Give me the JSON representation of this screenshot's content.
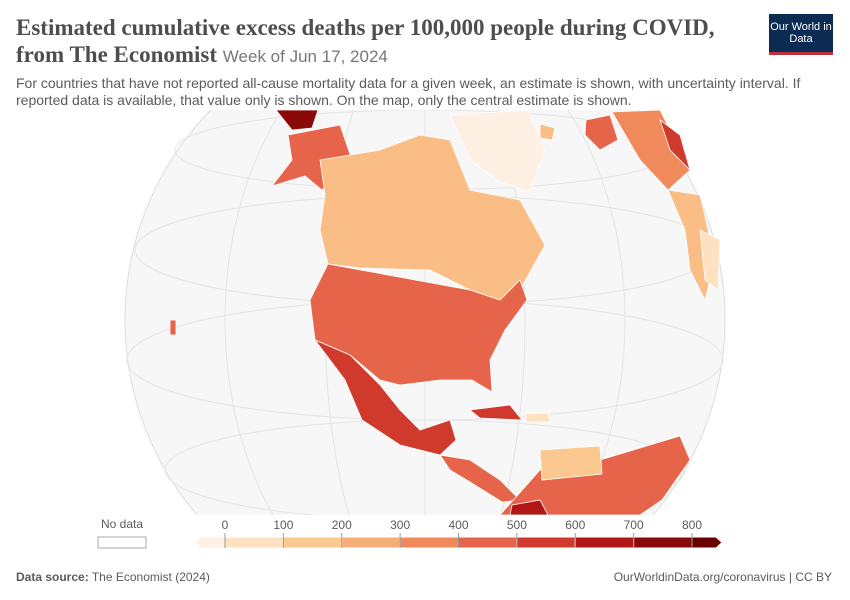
{
  "header": {
    "title": "Estimated cumulative excess deaths per 100,000 people during COVID, from The Economist",
    "subtitle": "Week of Jun 17, 2024",
    "description": "For countries that have not reported all-cause mortality data for a given week, an estimate is shown, with uncertainty interval. If reported data is available, that value only is shown. On the map, only the central estimate is shown.",
    "logo": "Our World in Data"
  },
  "legend": {
    "no_data_label": "No data",
    "ticks": [
      0,
      100,
      200,
      300,
      400,
      500,
      600,
      700,
      800
    ],
    "colors": [
      "#fef1e3",
      "#fde1c0",
      "#fbc98f",
      "#f6ad78",
      "#f08a5b",
      "#e6644a",
      "#cf3a2c",
      "#b01818",
      "#8a0909",
      "#690000"
    ]
  },
  "footer": {
    "source_label": "Data source:",
    "source": "The Economist (2024)",
    "url": "OurWorldinData.org/coronavirus | CC BY"
  }
}
